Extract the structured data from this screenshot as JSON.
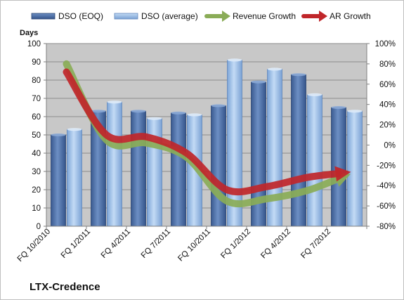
{
  "chart_data": {
    "type": "bar",
    "title": "",
    "company": "LTX-Credence",
    "ylabel": "Days",
    "ylim": [
      0,
      100
    ],
    "y_ticks": [
      "0",
      "10",
      "20",
      "30",
      "40",
      "50",
      "60",
      "70",
      "80",
      "90",
      "100"
    ],
    "y2lim": [
      -80,
      100
    ],
    "y2_ticks": [
      "-80%",
      "-60%",
      "-40%",
      "-20%",
      "0%",
      "20%",
      "40%",
      "60%",
      "80%",
      "100%"
    ],
    "categories": [
      "FQ 10/2010",
      "FQ 1/2011",
      "FQ 4/2011",
      "FQ 7/2011",
      "FQ 10/2011",
      "FQ 1/2012",
      "FQ 4/2012",
      "FQ 7/2012"
    ],
    "series": [
      {
        "name": "DSO (EOQ)",
        "kind": "bar",
        "axis": "left",
        "color": "#4f6fa8",
        "values": [
          50,
          63,
          63,
          62,
          66,
          79,
          83,
          65
        ]
      },
      {
        "name": "DSO (average)",
        "kind": "bar",
        "axis": "left",
        "color": "#8fb4e3",
        "values": [
          53,
          68,
          59,
          61,
          91,
          86,
          72,
          63
        ]
      },
      {
        "name": "Revenue Growth",
        "kind": "line",
        "axis": "right",
        "color": "#8aac57",
        "values": [
          80,
          5,
          2,
          -12,
          -55,
          -53,
          -45,
          -30
        ]
      },
      {
        "name": "AR Growth",
        "kind": "line",
        "axis": "right",
        "color": "#c0262a",
        "values": [
          72,
          10,
          8,
          -8,
          -44,
          -41,
          -32,
          -27
        ]
      }
    ],
    "legend_position": "top",
    "grid": true
  }
}
